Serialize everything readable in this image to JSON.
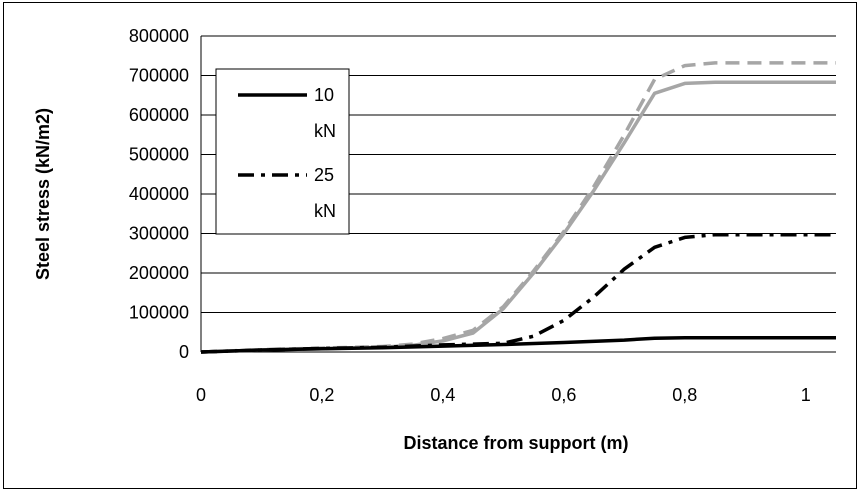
{
  "chart_data": {
    "type": "line",
    "title": "",
    "xlabel": "Distance from support (m)",
    "ylabel": "Steel stress (kN/m2)",
    "xlim": [
      0,
      1.05
    ],
    "ylim": [
      0,
      800000
    ],
    "x_ticks": [
      "0",
      "0,2",
      "0,4",
      "0,6",
      "0,8",
      "1"
    ],
    "y_ticks": [
      "0",
      "100000",
      "200000",
      "300000",
      "400000",
      "500000",
      "600000",
      "700000",
      "800000"
    ],
    "grid": "horizontal",
    "legend_position": "top-left",
    "series": [
      {
        "name": "10 kN",
        "color": "#000000",
        "style": "solid",
        "x": [
          0,
          0.1,
          0.2,
          0.3,
          0.4,
          0.5,
          0.6,
          0.7,
          0.75,
          0.8,
          0.9,
          1.05
        ],
        "y": [
          0,
          5000,
          8000,
          11000,
          15000,
          19000,
          24000,
          30000,
          35000,
          36000,
          36000,
          36000
        ]
      },
      {
        "name": "25 kN",
        "color": "#000000",
        "style": "dashdot",
        "x": [
          0,
          0.1,
          0.2,
          0.3,
          0.4,
          0.5,
          0.55,
          0.6,
          0.65,
          0.7,
          0.75,
          0.8,
          0.85,
          1.05
        ],
        "y": [
          0,
          5000,
          9000,
          12000,
          18000,
          22000,
          40000,
          80000,
          140000,
          210000,
          265000,
          290000,
          297000,
          297000
        ]
      },
      {
        "name": "",
        "color": "#a6a6a6",
        "style": "solid",
        "x": [
          0,
          0.1,
          0.2,
          0.3,
          0.35,
          0.4,
          0.45,
          0.5,
          0.55,
          0.6,
          0.65,
          0.7,
          0.75,
          0.8,
          0.85,
          1.05
        ],
        "y": [
          0,
          5000,
          8000,
          12000,
          17000,
          28000,
          48000,
          110000,
          200000,
          300000,
          410000,
          530000,
          655000,
          680000,
          683000,
          683000
        ]
      },
      {
        "name": "",
        "color": "#a6a6a6",
        "style": "dashed",
        "x": [
          0,
          0.1,
          0.2,
          0.3,
          0.35,
          0.4,
          0.45,
          0.5,
          0.55,
          0.6,
          0.65,
          0.7,
          0.75,
          0.8,
          0.85,
          1.05
        ],
        "y": [
          0,
          6000,
          10000,
          14000,
          20000,
          34000,
          55000,
          115000,
          205000,
          305000,
          420000,
          550000,
          690000,
          725000,
          732000,
          732000
        ]
      }
    ],
    "legend": [
      {
        "line1": "10",
        "line2": "kN"
      },
      {
        "line1": "25",
        "line2": "kN"
      }
    ]
  }
}
